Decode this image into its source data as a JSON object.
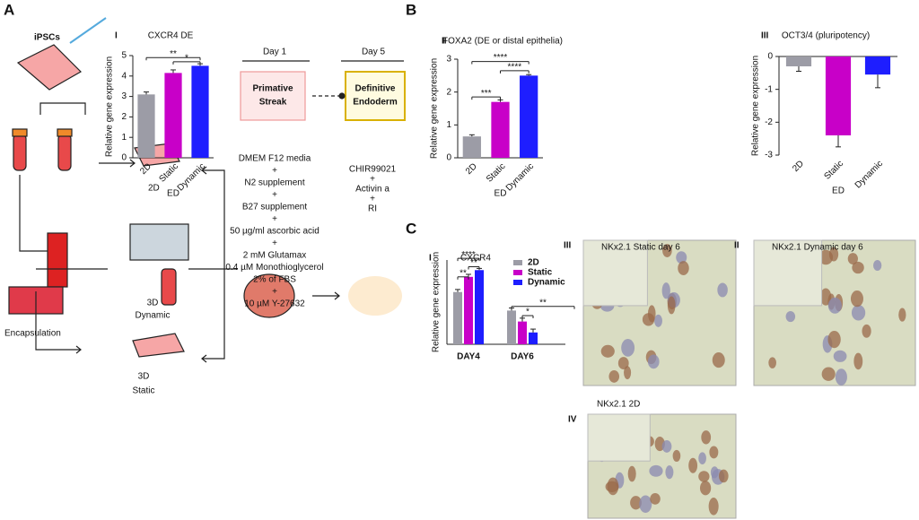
{
  "figure": {
    "panel_a": {
      "letter": "A",
      "ipsc": "iPSCs",
      "label_2d": "2D",
      "label_dyn": [
        "3D",
        "Dynamic"
      ],
      "encapsulation": "Encapsulation",
      "label_static": [
        "3D",
        "Static"
      ],
      "day1": "Day 1",
      "day5": "Day 5",
      "streak": [
        "Primative",
        "Streak"
      ],
      "endoderm": [
        "Definitive",
        "Endoderm"
      ],
      "medium": [
        "DMEM F12 media",
        "+",
        "N2 supplement",
        "+",
        "B27 supplement",
        "+",
        "50 µg/ml ascorbic acid",
        "+",
        "2 mM Glutamax",
        "0.4 µM Monothioglycerol",
        "2% of FBS",
        "+",
        "10 µM Y-27632"
      ],
      "factors": [
        "CHIR99021",
        "+",
        "Activin a",
        "+",
        "RI"
      ]
    },
    "panel_b": "B",
    "panel_c": "C",
    "images": [
      {
        "numeral": "III",
        "caption": "NKx2.1 Static day 6"
      },
      {
        "numeral": "II",
        "caption": "NKx2.1 Dynamic day 6"
      },
      {
        "numeral": "IV",
        "caption": "NKx2.1 2D"
      }
    ]
  },
  "chart_data": [
    {
      "type": "bar",
      "panel": "I",
      "title": "CXCR4 DE",
      "categories": [
        "2D",
        "Static",
        "Dynamic"
      ],
      "values": [
        3.1,
        4.15,
        4.5
      ],
      "errors": [
        0.12,
        0.15,
        0.1
      ],
      "colors": [
        "#9c9ca6",
        "#c800c8",
        "#1e1eff"
      ],
      "ylabel": "Relative gene expression",
      "xlabel": "ED",
      "ylim": [
        0,
        5
      ],
      "yticks": [
        0,
        1,
        2,
        3,
        4,
        5
      ],
      "annotations": [
        "**",
        "*"
      ]
    },
    {
      "type": "bar",
      "panel": "II",
      "title": "FOXA2 (DE or distal epithelia)",
      "categories": [
        "2D",
        "Static",
        "Dynamic"
      ],
      "values": [
        0.65,
        1.7,
        2.5
      ],
      "errors": [
        0.05,
        0.06,
        0.03
      ],
      "colors": [
        "#9c9ca6",
        "#c800c8",
        "#1e1eff"
      ],
      "ylabel": "Relative gene expression",
      "xlabel": "ED",
      "ylim": [
        0,
        3
      ],
      "yticks": [
        0,
        1,
        2,
        3
      ],
      "annotations": [
        "****",
        "****",
        "***"
      ]
    },
    {
      "type": "bar",
      "panel": "III",
      "title": "OCT3/4 (pluripotency)",
      "categories": [
        "2D",
        "Static",
        "Dynamic"
      ],
      "values": [
        -0.3,
        -2.4,
        -0.55
      ],
      "errors": [
        0.15,
        0.35,
        0.4
      ],
      "colors": [
        "#9c9ca6",
        "#c800c8",
        "#1e1eff"
      ],
      "ylabel": "Relative gene expression",
      "xlabel": "ED",
      "ylim": [
        -3,
        0
      ],
      "yticks": [
        -3,
        -2,
        -1,
        0
      ],
      "annotations": []
    },
    {
      "type": "grouped_bar",
      "panel": "I",
      "title": "CXCR4",
      "categories": [
        "DAY4",
        "DAY6"
      ],
      "ylabel": "Relative gene expression",
      "ylim": [
        0,
        1
      ],
      "series": [
        {
          "name": "2D",
          "color": "#9c9ca6",
          "values": [
            0.62,
            0.4
          ],
          "errors": [
            0.03,
            0.03
          ]
        },
        {
          "name": "Static",
          "color": "#c800c8",
          "values": [
            0.8,
            0.27
          ],
          "errors": [
            0.03,
            0.04
          ]
        },
        {
          "name": "Dynamic",
          "color": "#1e1eff",
          "values": [
            0.88,
            0.14
          ],
          "errors": [
            0.02,
            0.04
          ]
        }
      ],
      "annotations": [
        "****",
        "**",
        "**",
        "**",
        "*"
      ]
    }
  ]
}
